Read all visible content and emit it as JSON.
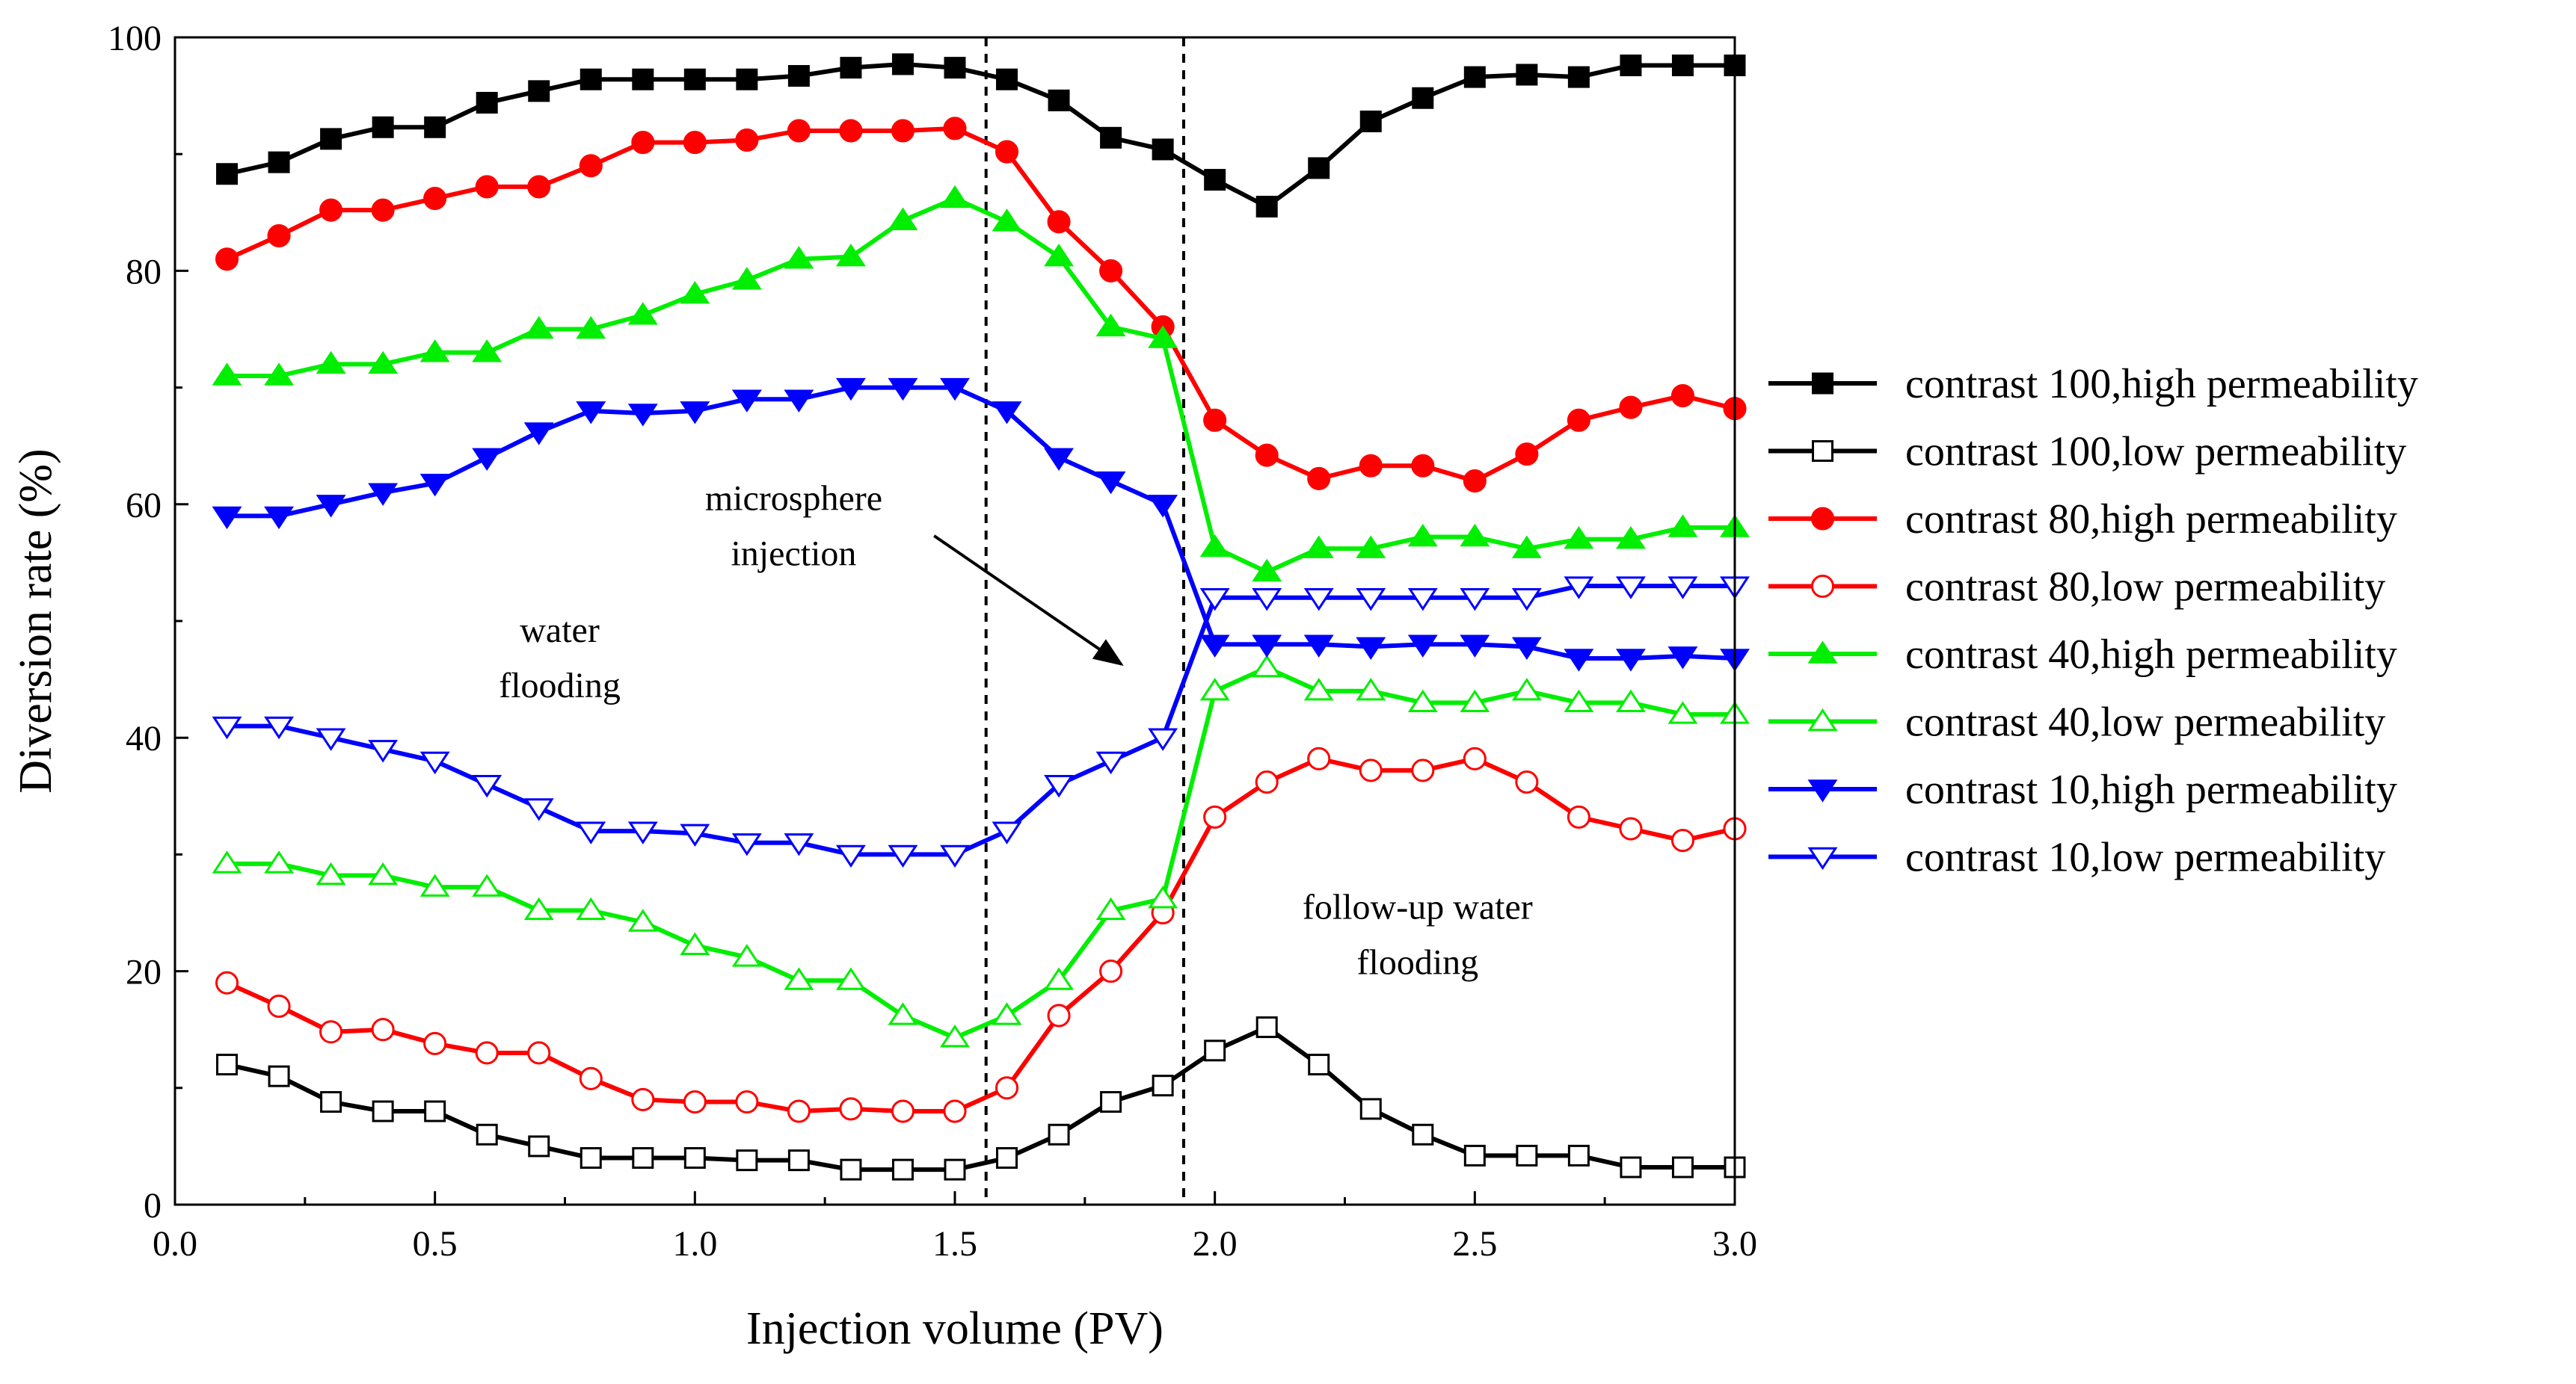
{
  "chart_data": {
    "type": "line",
    "title": "",
    "xlabel": "Injection volume (PV)",
    "ylabel": "Diversion rate (%)",
    "xlim": [
      0.0,
      3.0
    ],
    "ylim": [
      0,
      100
    ],
    "xticks": [
      0.0,
      0.5,
      1.0,
      1.5,
      2.0,
      2.5,
      3.0
    ],
    "xtick_labels": [
      "0.0",
      "0.5",
      "1.0",
      "1.5",
      "2.0",
      "2.5",
      "3.0"
    ],
    "yticks": [
      0,
      20,
      40,
      60,
      80,
      100
    ],
    "ytick_labels": [
      "0",
      "20",
      "40",
      "60",
      "80",
      "100"
    ],
    "grid": false,
    "legend_position": "right",
    "x": [
      0.1,
      0.2,
      0.3,
      0.4,
      0.5,
      0.6,
      0.7,
      0.8,
      0.9,
      1.0,
      1.1,
      1.2,
      1.3,
      1.4,
      1.5,
      1.6,
      1.7,
      1.8,
      1.9,
      2.0,
      2.1,
      2.2,
      2.3,
      2.4,
      2.5,
      2.6,
      2.7,
      2.8,
      2.9,
      3.0
    ],
    "series": [
      {
        "name": "contrast 100,high permeability",
        "color": "#000000",
        "marker": "square",
        "filled": true,
        "values": [
          88.3,
          89.3,
          91.3,
          92.3,
          92.3,
          94.4,
          95.4,
          96.4,
          96.4,
          96.4,
          96.4,
          96.7,
          97.4,
          97.7,
          97.4,
          96.4,
          94.6,
          91.4,
          90.4,
          87.8,
          85.5,
          88.8,
          92.8,
          94.8,
          96.6,
          96.8,
          96.6,
          97.6,
          97.6,
          97.6
        ]
      },
      {
        "name": "contrast 100,low permeability",
        "color": "#000000",
        "marker": "square",
        "filled": false,
        "values": [
          12.0,
          11.0,
          8.8,
          8.0,
          8.0,
          6.0,
          5.0,
          4.0,
          4.0,
          4.0,
          3.8,
          3.8,
          3.0,
          3.0,
          3.0,
          4.0,
          6.0,
          8.8,
          10.2,
          13.2,
          15.2,
          12.0,
          8.2,
          6.0,
          4.2,
          4.2,
          4.2,
          3.2,
          3.2,
          3.2
        ]
      },
      {
        "name": "contrast 80,high permeability",
        "color": "#ff0000",
        "marker": "circle",
        "filled": true,
        "values": [
          81.0,
          83.0,
          85.2,
          85.2,
          86.2,
          87.2,
          87.2,
          89.0,
          91.0,
          91.0,
          91.2,
          92.0,
          92.0,
          92.0,
          92.2,
          90.2,
          84.2,
          80.0,
          75.2,
          67.2,
          64.2,
          62.2,
          63.3,
          63.3,
          62.0,
          64.3,
          67.2,
          68.3,
          69.3,
          68.2
        ]
      },
      {
        "name": "contrast 80,low permeability",
        "color": "#ff0000",
        "marker": "circle",
        "filled": false,
        "values": [
          19.0,
          17.0,
          14.8,
          15.0,
          13.8,
          13.0,
          13.0,
          10.8,
          9.0,
          8.8,
          8.8,
          8.0,
          8.2,
          8.0,
          8.0,
          10.0,
          16.2,
          20.0,
          25.0,
          33.2,
          36.2,
          38.2,
          37.2,
          37.2,
          38.2,
          36.2,
          33.2,
          32.2,
          31.2,
          32.2
        ]
      },
      {
        "name": "contrast 40,high permeability",
        "color": "#00ee00",
        "marker": "triangle-up",
        "filled": true,
        "values": [
          71.0,
          71.0,
          72.0,
          72.0,
          73.0,
          73.0,
          75.0,
          75.0,
          76.2,
          78.0,
          79.2,
          81.0,
          81.2,
          84.3,
          86.2,
          84.2,
          81.2,
          75.2,
          74.2,
          56.3,
          54.2,
          56.2,
          56.2,
          57.2,
          57.2,
          56.2,
          57.0,
          57.0,
          58.0,
          58.0
        ]
      },
      {
        "name": "contrast 40,low permeability",
        "color": "#00ee00",
        "marker": "triangle-up",
        "filled": false,
        "values": [
          29.2,
          29.2,
          28.2,
          28.2,
          27.2,
          27.2,
          25.2,
          25.2,
          24.2,
          22.2,
          21.2,
          19.2,
          19.2,
          16.2,
          14.3,
          16.2,
          19.2,
          25.2,
          26.2,
          44.0,
          46.0,
          44.0,
          44.0,
          43.0,
          43.0,
          44.0,
          43.0,
          43.0,
          42.0,
          42.0
        ]
      },
      {
        "name": "contrast 10,high permeability",
        "color": "#0000ff",
        "marker": "triangle-down",
        "filled": true,
        "values": [
          59.0,
          59.0,
          60.0,
          61.0,
          61.8,
          64.0,
          66.2,
          68.0,
          67.8,
          68.0,
          69.0,
          69.0,
          70.0,
          70.0,
          70.0,
          68.0,
          64.0,
          62.0,
          60.0,
          48.0,
          48.0,
          48.0,
          47.8,
          48.0,
          48.0,
          47.8,
          46.8,
          46.8,
          47.0,
          46.8
        ]
      },
      {
        "name": "contrast 10,low permeability",
        "color": "#0000ff",
        "marker": "triangle-down",
        "filled": false,
        "values": [
          41.0,
          41.0,
          40.0,
          39.0,
          38.0,
          36.0,
          34.0,
          32.0,
          32.0,
          31.8,
          31.0,
          31.0,
          30.0,
          30.0,
          30.0,
          32.0,
          36.0,
          38.0,
          40.0,
          52.0,
          52.0,
          52.0,
          52.0,
          52.0,
          52.0,
          52.0,
          53.0,
          53.0,
          53.0,
          53.0
        ]
      }
    ],
    "vlines": [
      1.56,
      1.94
    ],
    "annotations": [
      {
        "lines": [
          "water",
          "flooding"
        ],
        "x": 0.74,
        "y": 48.2
      },
      {
        "lines": [
          "microsphere",
          "injection"
        ],
        "x": 1.19,
        "y": 59.5
      },
      {
        "lines": [
          "follow-up water",
          "flooding"
        ],
        "x": 2.39,
        "y": 24.5
      }
    ],
    "arrow": {
      "from": [
        1.46,
        57.3
      ],
      "to": [
        1.82,
        46.3
      ]
    }
  }
}
